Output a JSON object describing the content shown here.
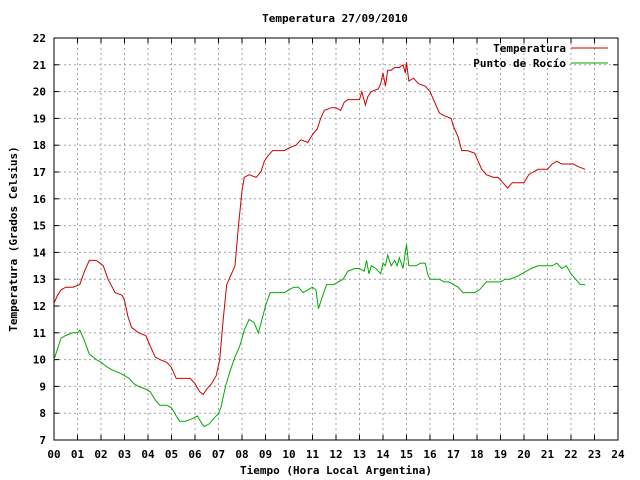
{
  "chart_data": {
    "type": "line",
    "title": "Temperatura 27/09/2010",
    "xlabel": "Tiempo (Hora Local Argentina)",
    "ylabel": "Temperatura (Grados Celsius)",
    "xlim": [
      0,
      24
    ],
    "ylim": [
      7,
      22
    ],
    "x_ticks": [
      "00",
      "01",
      "02",
      "03",
      "04",
      "05",
      "06",
      "07",
      "08",
      "09",
      "10",
      "11",
      "12",
      "13",
      "14",
      "15",
      "16",
      "17",
      "18",
      "19",
      "20",
      "21",
      "22",
      "23",
      "24"
    ],
    "y_ticks": [
      7,
      8,
      9,
      10,
      11,
      12,
      13,
      14,
      15,
      16,
      17,
      18,
      19,
      20,
      21,
      22
    ],
    "grid": true,
    "legend_position": "top-right",
    "series": [
      {
        "name": "Temperatura",
        "color": "#cc0000",
        "points": [
          [
            0.0,
            12.1
          ],
          [
            0.15,
            12.4
          ],
          [
            0.3,
            12.6
          ],
          [
            0.5,
            12.7
          ],
          [
            0.8,
            12.7
          ],
          [
            1.1,
            12.8
          ],
          [
            1.3,
            13.3
          ],
          [
            1.5,
            13.7
          ],
          [
            1.8,
            13.7
          ],
          [
            2.1,
            13.5
          ],
          [
            2.3,
            13.0
          ],
          [
            2.6,
            12.5
          ],
          [
            2.9,
            12.4
          ],
          [
            3.0,
            12.2
          ],
          [
            3.15,
            11.6
          ],
          [
            3.3,
            11.2
          ],
          [
            3.6,
            11.0
          ],
          [
            3.9,
            10.9
          ],
          [
            4.1,
            10.5
          ],
          [
            4.3,
            10.1
          ],
          [
            4.5,
            10.0
          ],
          [
            4.8,
            9.9
          ],
          [
            5.0,
            9.7
          ],
          [
            5.2,
            9.3
          ],
          [
            5.5,
            9.3
          ],
          [
            5.8,
            9.3
          ],
          [
            6.0,
            9.1
          ],
          [
            6.2,
            8.8
          ],
          [
            6.35,
            8.7
          ],
          [
            6.5,
            8.9
          ],
          [
            6.7,
            9.1
          ],
          [
            6.9,
            9.4
          ],
          [
            7.05,
            10.0
          ],
          [
            7.2,
            11.5
          ],
          [
            7.35,
            12.8
          ],
          [
            7.5,
            13.1
          ],
          [
            7.7,
            13.5
          ],
          [
            7.85,
            15.0
          ],
          [
            8.0,
            16.3
          ],
          [
            8.1,
            16.8
          ],
          [
            8.3,
            16.9
          ],
          [
            8.6,
            16.8
          ],
          [
            8.8,
            17.0
          ],
          [
            8.95,
            17.4
          ],
          [
            9.1,
            17.6
          ],
          [
            9.3,
            17.8
          ],
          [
            9.6,
            17.8
          ],
          [
            9.8,
            17.8
          ],
          [
            10.0,
            17.9
          ],
          [
            10.3,
            18.0
          ],
          [
            10.5,
            18.2
          ],
          [
            10.8,
            18.1
          ],
          [
            11.0,
            18.4
          ],
          [
            11.2,
            18.6
          ],
          [
            11.35,
            19.0
          ],
          [
            11.5,
            19.3
          ],
          [
            11.8,
            19.4
          ],
          [
            12.0,
            19.4
          ],
          [
            12.2,
            19.3
          ],
          [
            12.35,
            19.6
          ],
          [
            12.5,
            19.7
          ],
          [
            12.8,
            19.7
          ],
          [
            13.0,
            19.7
          ],
          [
            13.1,
            20.0
          ],
          [
            13.25,
            19.5
          ],
          [
            13.35,
            19.8
          ],
          [
            13.5,
            20.0
          ],
          [
            13.8,
            20.1
          ],
          [
            13.9,
            20.3
          ],
          [
            14.0,
            20.7
          ],
          [
            14.1,
            20.2
          ],
          [
            14.2,
            20.8
          ],
          [
            14.35,
            20.8
          ],
          [
            14.5,
            20.9
          ],
          [
            14.7,
            20.9
          ],
          [
            14.85,
            21.0
          ],
          [
            14.95,
            20.7
          ],
          [
            15.0,
            21.1
          ],
          [
            15.1,
            20.4
          ],
          [
            15.3,
            20.5
          ],
          [
            15.5,
            20.3
          ],
          [
            15.8,
            20.2
          ],
          [
            16.0,
            20.0
          ],
          [
            16.2,
            19.6
          ],
          [
            16.4,
            19.2
          ],
          [
            16.6,
            19.1
          ],
          [
            16.9,
            19.0
          ],
          [
            17.0,
            18.7
          ],
          [
            17.2,
            18.3
          ],
          [
            17.35,
            17.8
          ],
          [
            17.6,
            17.8
          ],
          [
            17.9,
            17.7
          ],
          [
            18.0,
            17.5
          ],
          [
            18.2,
            17.1
          ],
          [
            18.4,
            16.9
          ],
          [
            18.7,
            16.8
          ],
          [
            18.9,
            16.8
          ],
          [
            19.1,
            16.6
          ],
          [
            19.3,
            16.4
          ],
          [
            19.5,
            16.6
          ],
          [
            19.8,
            16.6
          ],
          [
            20.0,
            16.6
          ],
          [
            20.2,
            16.9
          ],
          [
            20.4,
            17.0
          ],
          [
            20.6,
            17.1
          ],
          [
            20.9,
            17.1
          ],
          [
            21.0,
            17.1
          ],
          [
            21.2,
            17.3
          ],
          [
            21.4,
            17.4
          ],
          [
            21.6,
            17.3
          ],
          [
            21.9,
            17.3
          ],
          [
            22.1,
            17.3
          ],
          [
            22.3,
            17.2
          ],
          [
            22.6,
            17.1
          ]
        ]
      },
      {
        "name": "Punto de Rocío",
        "color": "#00aa00",
        "points": [
          [
            0.0,
            10.0
          ],
          [
            0.15,
            10.4
          ],
          [
            0.3,
            10.8
          ],
          [
            0.5,
            10.9
          ],
          [
            0.8,
            11.0
          ],
          [
            1.0,
            11.0
          ],
          [
            1.1,
            11.1
          ],
          [
            1.3,
            10.7
          ],
          [
            1.5,
            10.2
          ],
          [
            1.8,
            10.0
          ],
          [
            2.0,
            9.9
          ],
          [
            2.3,
            9.7
          ],
          [
            2.5,
            9.6
          ],
          [
            2.8,
            9.5
          ],
          [
            3.0,
            9.4
          ],
          [
            3.2,
            9.3
          ],
          [
            3.4,
            9.1
          ],
          [
            3.6,
            9.0
          ],
          [
            3.9,
            8.9
          ],
          [
            4.1,
            8.8
          ],
          [
            4.3,
            8.5
          ],
          [
            4.5,
            8.3
          ],
          [
            4.8,
            8.3
          ],
          [
            5.0,
            8.2
          ],
          [
            5.2,
            7.9
          ],
          [
            5.35,
            7.7
          ],
          [
            5.6,
            7.7
          ],
          [
            5.9,
            7.8
          ],
          [
            6.1,
            7.9
          ],
          [
            6.3,
            7.6
          ],
          [
            6.4,
            7.5
          ],
          [
            6.6,
            7.6
          ],
          [
            6.8,
            7.8
          ],
          [
            7.0,
            8.0
          ],
          [
            7.1,
            8.2
          ],
          [
            7.3,
            9.0
          ],
          [
            7.5,
            9.6
          ],
          [
            7.7,
            10.1
          ],
          [
            7.9,
            10.5
          ],
          [
            8.1,
            11.1
          ],
          [
            8.3,
            11.5
          ],
          [
            8.5,
            11.4
          ],
          [
            8.7,
            11.0
          ],
          [
            8.85,
            11.5
          ],
          [
            9.0,
            12.0
          ],
          [
            9.2,
            12.5
          ],
          [
            9.5,
            12.5
          ],
          [
            9.8,
            12.5
          ],
          [
            10.0,
            12.6
          ],
          [
            10.2,
            12.7
          ],
          [
            10.4,
            12.7
          ],
          [
            10.6,
            12.5
          ],
          [
            10.8,
            12.6
          ],
          [
            11.0,
            12.7
          ],
          [
            11.15,
            12.6
          ],
          [
            11.25,
            11.9
          ],
          [
            11.4,
            12.3
          ],
          [
            11.6,
            12.8
          ],
          [
            11.9,
            12.8
          ],
          [
            12.1,
            12.9
          ],
          [
            12.3,
            13.0
          ],
          [
            12.5,
            13.3
          ],
          [
            12.8,
            13.4
          ],
          [
            13.0,
            13.4
          ],
          [
            13.2,
            13.3
          ],
          [
            13.3,
            13.7
          ],
          [
            13.4,
            13.2
          ],
          [
            13.5,
            13.5
          ],
          [
            13.7,
            13.4
          ],
          [
            13.9,
            13.2
          ],
          [
            14.0,
            13.6
          ],
          [
            14.1,
            13.5
          ],
          [
            14.2,
            13.9
          ],
          [
            14.35,
            13.5
          ],
          [
            14.5,
            13.7
          ],
          [
            14.6,
            13.5
          ],
          [
            14.7,
            13.8
          ],
          [
            14.85,
            13.4
          ],
          [
            15.0,
            14.3
          ],
          [
            15.1,
            13.5
          ],
          [
            15.2,
            13.5
          ],
          [
            15.4,
            13.5
          ],
          [
            15.6,
            13.6
          ],
          [
            15.8,
            13.6
          ],
          [
            15.9,
            13.2
          ],
          [
            16.0,
            13.0
          ],
          [
            16.2,
            13.0
          ],
          [
            16.4,
            13.0
          ],
          [
            16.6,
            12.9
          ],
          [
            16.8,
            12.9
          ],
          [
            17.0,
            12.8
          ],
          [
            17.2,
            12.7
          ],
          [
            17.4,
            12.5
          ],
          [
            17.7,
            12.5
          ],
          [
            17.9,
            12.5
          ],
          [
            18.1,
            12.6
          ],
          [
            18.4,
            12.9
          ],
          [
            18.7,
            12.9
          ],
          [
            19.0,
            12.9
          ],
          [
            19.2,
            13.0
          ],
          [
            19.4,
            13.0
          ],
          [
            19.7,
            13.1
          ],
          [
            19.9,
            13.2
          ],
          [
            20.1,
            13.3
          ],
          [
            20.3,
            13.4
          ],
          [
            20.6,
            13.5
          ],
          [
            20.8,
            13.5
          ],
          [
            21.0,
            13.5
          ],
          [
            21.2,
            13.5
          ],
          [
            21.4,
            13.6
          ],
          [
            21.6,
            13.4
          ],
          [
            21.8,
            13.5
          ],
          [
            22.0,
            13.2
          ],
          [
            22.2,
            13.0
          ],
          [
            22.4,
            12.8
          ],
          [
            22.6,
            12.8
          ]
        ]
      }
    ]
  }
}
